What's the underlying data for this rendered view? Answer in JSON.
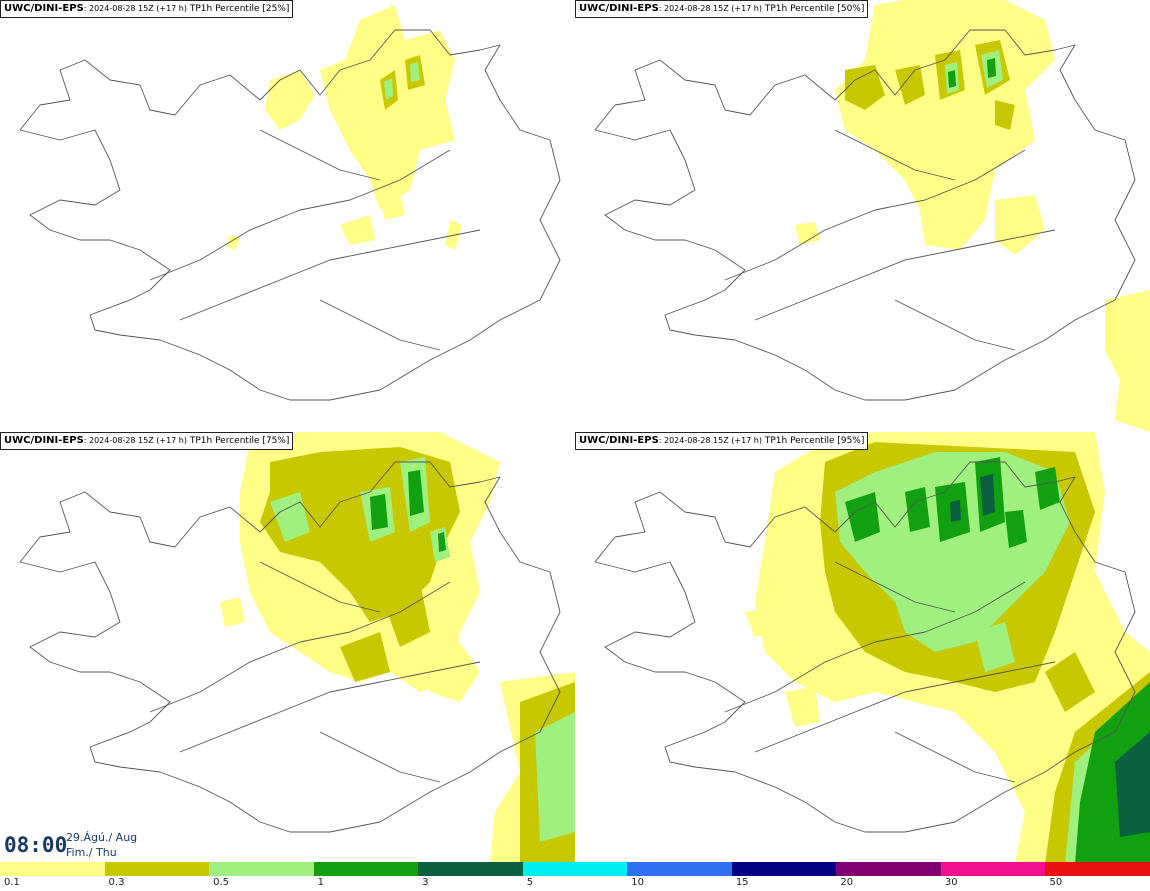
{
  "panels": [
    {
      "source": "UWC/DINI-EPS",
      "run": ": 2024-08-28 15Z (+17 h)",
      "param": "TP1h Percentile [25%]"
    },
    {
      "source": "UWC/DINI-EPS",
      "run": ": 2024-08-28 15Z (+17 h)",
      "param": "TP1h Percentile [50%]"
    },
    {
      "source": "UWC/DINI-EPS",
      "run": ": 2024-08-28 15Z (+17 h)",
      "param": "TP1h Percentile [75%]"
    },
    {
      "source": "UWC/DINI-EPS",
      "run": ": 2024-08-28 15Z (+17 h)",
      "param": "TP1h Percentile [95%]"
    }
  ],
  "valid_time": {
    "time": "08:00",
    "date_line1": "29.Ágú./ Aug",
    "date_line2": "Fim./ Thu"
  },
  "colorbar": {
    "colors": [
      "#ffff88",
      "#c8c800",
      "#a0f080",
      "#10a010",
      "#0a6040",
      "#00f0f0",
      "#3070f0",
      "#000080",
      "#800070",
      "#f01090",
      "#e81010"
    ],
    "ticks": [
      "0.1",
      "0.3",
      "0.5",
      "1",
      "3",
      "5",
      "10",
      "15",
      "20",
      "30",
      "50"
    ]
  },
  "palette": {
    "light_yellow": "#ffff88",
    "olive": "#c8c800",
    "light_green": "#a0f080",
    "green": "#10a010",
    "dark_green": "#0a6040",
    "border": "#555555"
  }
}
